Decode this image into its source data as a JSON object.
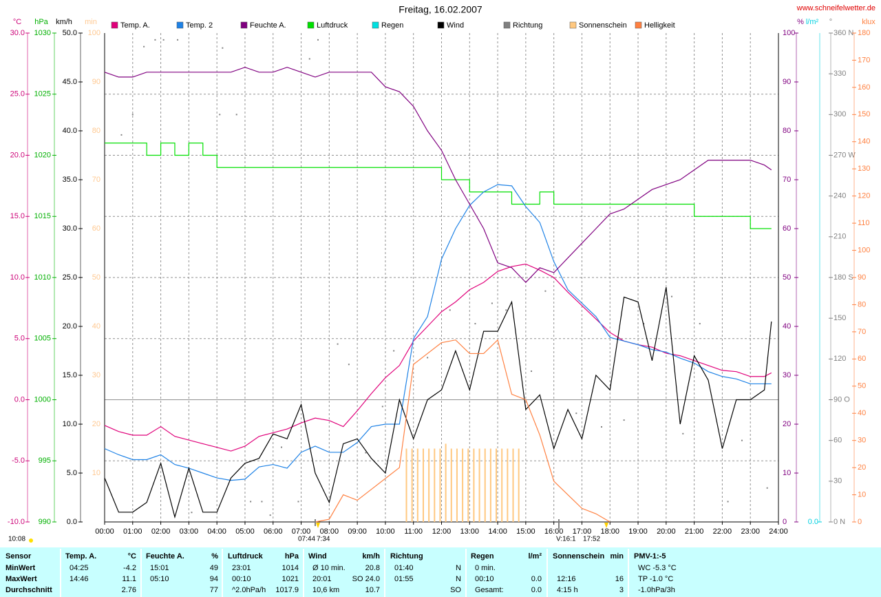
{
  "chart_data": {
    "type": "line",
    "title": "Freitag, 16.02.2007",
    "source": "www.schneifelwetter.de",
    "grid": true,
    "grid_axis": "temp",
    "xlim": [
      0,
      24
    ],
    "xticks": [
      {
        "value": 0,
        "label": "00:00"
      },
      {
        "value": 1,
        "label": "01:00"
      },
      {
        "value": 2,
        "label": "02:00"
      },
      {
        "value": 3,
        "label": "03:00"
      },
      {
        "value": 4,
        "label": "04:00"
      },
      {
        "value": 5,
        "label": "05:00"
      },
      {
        "value": 6,
        "label": "06:00"
      },
      {
        "value": 7,
        "label": "07:00"
      },
      {
        "value": 8,
        "label": "08:00"
      },
      {
        "value": 9,
        "label": "09:00"
      },
      {
        "value": 10,
        "label": "10:00"
      },
      {
        "value": 11,
        "label": "11:00"
      },
      {
        "value": 12,
        "label": "12:00"
      },
      {
        "value": 13,
        "label": "13:00"
      },
      {
        "value": 14,
        "label": "14:00"
      },
      {
        "value": 15,
        "label": "15:00"
      },
      {
        "value": 16,
        "label": "16:00"
      },
      {
        "value": 17,
        "label": "17:00"
      },
      {
        "value": 18,
        "label": "18:00"
      },
      {
        "value": 19,
        "label": "19:00"
      },
      {
        "value": 20,
        "label": "20:00"
      },
      {
        "value": 21,
        "label": "21:00"
      },
      {
        "value": 22,
        "label": "22:00"
      },
      {
        "value": 23,
        "label": "23:00"
      },
      {
        "value": 24,
        "label": "24:00"
      }
    ],
    "axes": {
      "temp": {
        "label": "°C",
        "color": "#cc0077",
        "lim": [
          -10,
          30
        ],
        "ticks": [
          {
            "value": -10,
            "label": "-10.0"
          },
          {
            "value": -5,
            "label": "-5.0"
          },
          {
            "value": 0,
            "label": "0.0"
          },
          {
            "value": 5,
            "label": "5.0"
          },
          {
            "value": 10,
            "label": "10.0"
          },
          {
            "value": 15,
            "label": "15.0"
          },
          {
            "value": 20,
            "label": "20.0"
          },
          {
            "value": 25,
            "label": "25.0"
          },
          {
            "value": 30,
            "label": "30.0"
          }
        ]
      },
      "hpa": {
        "label": "hPa",
        "color": "#00b000",
        "lim": [
          990,
          1030
        ],
        "ticks": [
          990,
          995,
          1000,
          1005,
          1010,
          1015,
          1020,
          1025,
          1030
        ]
      },
      "kmh": {
        "label": "km/h",
        "color": "#000000",
        "lim": [
          0,
          50
        ],
        "ticks": [
          {
            "value": 0,
            "label": "0.0"
          },
          {
            "value": 5,
            "label": "5.0"
          },
          {
            "value": 10,
            "label": "10.0"
          },
          {
            "value": 15,
            "label": "15.0"
          },
          {
            "value": 20,
            "label": "20.0"
          },
          {
            "value": 25,
            "label": "25.0"
          },
          {
            "value": 30,
            "label": "30.0"
          },
          {
            "value": 35,
            "label": "35.0"
          },
          {
            "value": 40,
            "label": "40.0"
          },
          {
            "value": 45,
            "label": "45.0"
          },
          {
            "value": 50,
            "label": "50.0"
          }
        ]
      },
      "min": {
        "label": "min",
        "color": "#ffc890",
        "lim": [
          0,
          100
        ],
        "ticks": [
          10,
          20,
          30,
          40,
          50,
          60,
          70,
          80,
          90,
          100
        ]
      },
      "pct": {
        "label": "%",
        "color": "#800080",
        "lim": [
          0,
          100
        ],
        "ticks": [
          0,
          10,
          20,
          30,
          40,
          50,
          60,
          70,
          80,
          90,
          100
        ]
      },
      "rain": {
        "label": "l/m²",
        "color": "#00d0e0",
        "ticks": [
          {
            "value": 0,
            "label": "0.0"
          }
        ]
      },
      "deg": {
        "label": "°",
        "color": "#808080",
        "lim": [
          0,
          360
        ],
        "ticks": [
          {
            "value": 0,
            "label": "0 N"
          },
          30,
          60,
          {
            "value": 90,
            "label": "90 O"
          },
          120,
          150,
          {
            "value": 180,
            "label": "180 S"
          },
          210,
          240,
          {
            "value": 270,
            "label": "270 W"
          },
          300,
          330,
          {
            "value": 360,
            "label": "360 N"
          }
        ]
      },
      "klux": {
        "label": "klux",
        "color": "#ff8040",
        "lim": [
          0,
          180
        ],
        "ticks": [
          0,
          10,
          20,
          30,
          40,
          50,
          60,
          70,
          80,
          90,
          100,
          110,
          120,
          130,
          140,
          150,
          160,
          170,
          180
        ]
      }
    },
    "x": [
      0,
      0.5,
      1,
      1.5,
      2,
      2.5,
      3,
      3.5,
      4,
      4.5,
      5,
      5.5,
      6,
      6.5,
      7,
      7.5,
      8,
      8.5,
      9,
      9.5,
      10,
      10.5,
      11,
      11.5,
      12,
      12.5,
      13,
      13.5,
      14,
      14.5,
      15,
      15.5,
      16,
      16.5,
      17,
      17.5,
      18,
      18.5,
      19,
      19.5,
      20,
      20.5,
      21,
      21.5,
      22,
      22.5,
      23,
      23.5,
      23.75
    ],
    "series": [
      {
        "name": "Temp. A.",
        "color": "#e0007a",
        "axis": "temp",
        "type": "line",
        "values": [
          -2.1,
          -2.6,
          -2.9,
          -2.9,
          -2.2,
          -3.0,
          -3.3,
          -3.6,
          -3.9,
          -4.2,
          -3.8,
          -3.0,
          -2.7,
          -2.4,
          -1.9,
          -1.5,
          -1.7,
          -2.2,
          -0.9,
          0.5,
          1.8,
          2.8,
          4.8,
          6.0,
          7.2,
          8.0,
          9.0,
          9.6,
          10.5,
          10.9,
          11.1,
          10.6,
          10.0,
          8.8,
          7.7,
          6.6,
          5.5,
          4.8,
          4.5,
          4.3,
          3.8,
          3.6,
          3.2,
          2.8,
          2.4,
          2.3,
          1.9,
          1.9,
          2.2
        ]
      },
      {
        "name": "Temp. 2",
        "color": "#1e82e6",
        "axis": "temp",
        "type": "line",
        "values": [
          -4.0,
          -4.5,
          -4.9,
          -4.9,
          -4.5,
          -5.3,
          -5.6,
          -6.0,
          -6.4,
          -6.6,
          -6.5,
          -5.5,
          -5.3,
          -5.6,
          -4.3,
          -3.8,
          -4.3,
          -4.3,
          -3.5,
          -2.2,
          -2.0,
          -2.0,
          5.0,
          6.8,
          11.5,
          14.0,
          15.9,
          17.0,
          17.6,
          17.5,
          15.8,
          14.5,
          11.3,
          9.0,
          7.9,
          6.8,
          5.1,
          4.8,
          4.5,
          4.1,
          3.9,
          3.4,
          3.0,
          2.3,
          1.9,
          1.7,
          1.3,
          1.3,
          1.3
        ]
      },
      {
        "name": "Feuchte A.",
        "color": "#800080",
        "axis": "pct",
        "type": "line",
        "values": [
          92,
          91,
          91,
          92,
          92,
          92,
          92,
          92,
          92,
          92,
          93,
          92,
          92,
          93,
          92,
          91,
          92,
          92,
          92,
          92,
          89,
          88,
          85,
          80,
          76,
          70,
          65,
          60,
          53,
          52,
          49,
          52,
          51,
          54,
          57,
          60,
          63,
          64,
          66,
          68,
          69,
          70,
          72,
          74,
          74,
          74,
          74,
          73,
          72
        ]
      },
      {
        "name": "Luftdruck",
        "color": "#00e000",
        "axis": "hpa",
        "type": "step",
        "values": [
          1021,
          1021,
          1021,
          1020,
          1021,
          1020,
          1021,
          1020,
          1019,
          1019,
          1019,
          1019,
          1019,
          1019,
          1019,
          1019,
          1019,
          1019,
          1019,
          1019,
          1019,
          1019,
          1019,
          1019,
          1018,
          1018,
          1017,
          1017,
          1017,
          1016,
          1016,
          1017,
          1016,
          1016,
          1016,
          1016,
          1016,
          1016,
          1016,
          1016,
          1016,
          1016,
          1015,
          1015,
          1015,
          1015,
          1014,
          1014,
          1014
        ]
      },
      {
        "name": "Regen",
        "color": "#00e0e0",
        "axis": "rain"
      },
      {
        "name": "Wind",
        "color": "#000000",
        "axis": "kmh",
        "type": "line",
        "values": [
          4.5,
          1.0,
          1.0,
          2.0,
          6.0,
          0.5,
          5.5,
          1.0,
          1.0,
          4.5,
          6.0,
          6.5,
          9.0,
          8.5,
          12.0,
          5.0,
          2.0,
          8.0,
          8.5,
          6.5,
          5.0,
          12.5,
          8.5,
          12.5,
          13.5,
          17.5,
          13.5,
          19.5,
          19.5,
          22.5,
          11.5,
          13.0,
          7.5,
          11.5,
          8.5,
          15.0,
          13.5,
          23.0,
          22.5,
          16.5,
          24.0,
          10.0,
          17.0,
          14.5,
          7.5,
          12.5,
          12.5,
          13.5,
          20.5
        ]
      },
      {
        "name": "Richtung",
        "color": "#808080",
        "axis": "deg",
        "type": "scatter",
        "x": [
          0.6,
          1.0,
          1.4,
          1.8,
          2.1,
          2.6,
          3.1,
          4.1,
          4.2,
          4.7,
          5.2,
          5.6,
          5.9,
          6.3,
          6.9,
          7.3,
          7.6,
          8.3,
          8.7,
          9.3,
          9.9,
          10.3,
          11.5,
          12.3,
          13.2,
          13.8,
          14.3,
          15.2,
          15.7,
          16.8,
          17.7,
          18.5,
          19.2,
          20.2,
          20.6,
          21.2,
          22.2,
          22.7,
          23.6
        ],
        "values": [
          285,
          300,
          350,
          355,
          355,
          355,
          7,
          300,
          349,
          300,
          15,
          15,
          5,
          55,
          15,
          341,
          355,
          131,
          116,
          51,
          85,
          126,
          121,
          156,
          146,
          161,
          156,
          111,
          170,
          80,
          70,
          75,
          146,
          166,
          65,
          146,
          15,
          60,
          25
        ]
      },
      {
        "name": "Sonnenschein",
        "color": "#ffc880",
        "axis": "min",
        "type": "bar",
        "x": [
          10.75,
          10.95,
          11.15,
          11.35,
          11.55,
          11.75,
          11.95,
          12.15,
          12.35,
          12.55,
          12.75,
          12.95,
          13.15,
          13.35,
          13.55,
          13.75,
          13.95,
          14.15,
          14.35,
          14.55,
          14.75
        ],
        "values": [
          15,
          15,
          15,
          15,
          15,
          15,
          15,
          16,
          15,
          15,
          15,
          15,
          15,
          15,
          15,
          15,
          15,
          15,
          15,
          15,
          15
        ]
      },
      {
        "name": "Helligkeit",
        "color": "#ff8040",
        "axis": "klux",
        "type": "line",
        "values": [
          null,
          null,
          null,
          null,
          null,
          null,
          null,
          null,
          null,
          null,
          null,
          null,
          null,
          null,
          null,
          0,
          1,
          10,
          8,
          12,
          16,
          20,
          58,
          62,
          66,
          67,
          62,
          62,
          67,
          47,
          45,
          32,
          15,
          10,
          5,
          3,
          0,
          null,
          null,
          null,
          null,
          null,
          null,
          null,
          null,
          null,
          null,
          null,
          null
        ]
      }
    ],
    "annotations": [
      "10:08",
      "07:44",
      "7:34",
      "V:16:1",
      "17:52"
    ]
  },
  "table": {
    "rows": [
      [
        {
          "left": "Sensor"
        },
        {
          "left": "Temp. A.",
          "right": "°C"
        },
        {
          "left": "Feuchte A.",
          "right": "%"
        },
        {
          "left": "Luftdruck",
          "right": "hPa"
        },
        {
          "left": "Wind",
          "right": "km/h"
        },
        {
          "left": "Richtung"
        },
        {
          "left": "Regen",
          "right": "l/m²"
        },
        {
          "left": "Sonnenschein",
          "right": "min"
        },
        {
          "left": "PMV-1:-5"
        }
      ],
      [
        {
          "left": "MinWert"
        },
        {
          "left": "04:25",
          "right": "-4.2"
        },
        {
          "left": "15:01",
          "right": "49"
        },
        {
          "left": "23:01",
          "right": "1014"
        },
        {
          "left": "Ø 10 min.",
          "right": "20.8"
        },
        {
          "left": "01:40",
          "right": "N"
        },
        {
          "left": "0 min."
        },
        {},
        {
          "left": "WC -5.3 °C"
        }
      ],
      [
        {
          "left": "MaxWert"
        },
        {
          "left": "14:46",
          "right": "11.1"
        },
        {
          "left": "05:10",
          "right": "94"
        },
        {
          "left": "00:10",
          "right": "1021"
        },
        {
          "left": "20:01",
          "right": "SO 24.0"
        },
        {
          "left": "01:55",
          "right": "N"
        },
        {
          "left": "00:10",
          "right": "0.0"
        },
        {
          "left": "12:16",
          "right": "16"
        },
        {
          "left": "TP -1.0 °C"
        }
      ],
      [
        {
          "left": "Durchschnitt"
        },
        {
          "right": "2.76"
        },
        {
          "right": "77"
        },
        {
          "left": "^2.0hPa/h",
          "right": "1017.9"
        },
        {
          "left": "10,6 km",
          "right": "10.7"
        },
        {
          "right": "SO"
        },
        {
          "left": "Gesamt:",
          "right": "0.0"
        },
        {
          "left": "4:15 h",
          "right": "3"
        },
        {
          "left": "-1.0hPa/3h"
        }
      ]
    ]
  }
}
